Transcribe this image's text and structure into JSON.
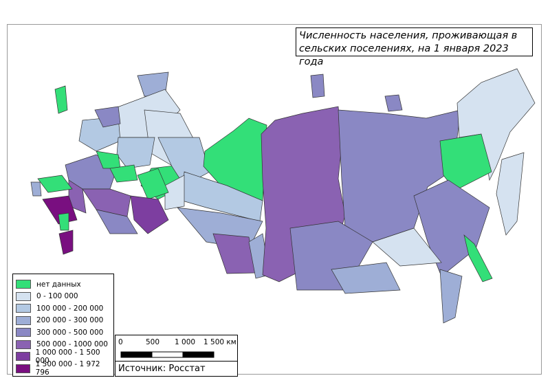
{
  "title": "Численность населения, проживающая в сельских поселениях, на 1 января 2023 года",
  "legend": {
    "items": [
      {
        "label": "нет данных",
        "color": "#33df78"
      },
      {
        "label": "0 - 100 000",
        "color": "#d5e2f0"
      },
      {
        "label": "100 000 - 200 000",
        "color": "#b3c9e3"
      },
      {
        "label": "200 000 - 300 000",
        "color": "#9eaed6"
      },
      {
        "label": "300 000 - 500 000",
        "color": "#8a88c4"
      },
      {
        "label": "500 000 - 1000 000",
        "color": "#8a62b2"
      },
      {
        "label": "1 000 000 - 1 500 000",
        "color": "#7d3ea0"
      },
      {
        "label": "1 500 000 - 1 972 796",
        "color": "#790f80"
      }
    ]
  },
  "scale_bar": {
    "labels": [
      "0",
      "500",
      "1 000",
      "1 500 км"
    ]
  },
  "source": "Источник: Росстат"
}
